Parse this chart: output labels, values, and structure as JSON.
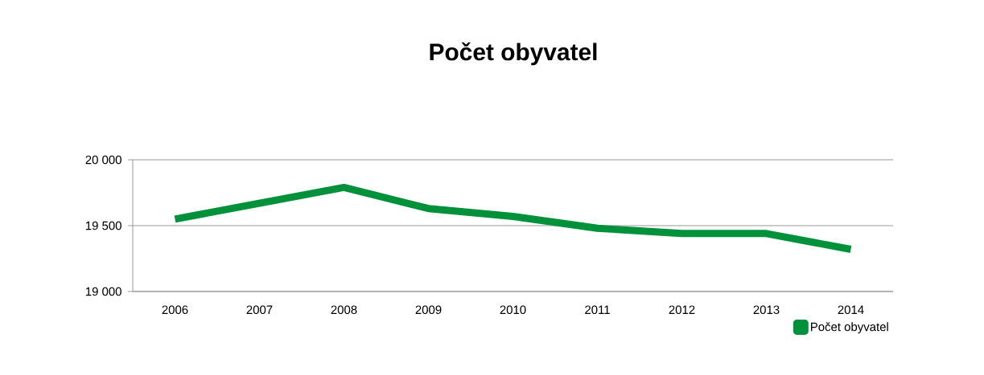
{
  "chart_data": {
    "type": "line",
    "title": "Počet obyvatel",
    "categories": [
      "2006",
      "2007",
      "2008",
      "2009",
      "2010",
      "2011",
      "2012",
      "2013",
      "2014"
    ],
    "series": [
      {
        "name": "Počet obyvatel",
        "color": "#00913a",
        "values": [
          19550,
          19670,
          19790,
          19630,
          19570,
          19480,
          19440,
          19440,
          19320
        ]
      }
    ],
    "ylim": [
      19000,
      20000
    ],
    "yticks": [
      {
        "value": 19000,
        "label": "19 000"
      },
      {
        "value": 19500,
        "label": "19 500"
      },
      {
        "value": 20000,
        "label": "20 000"
      }
    ],
    "grid": "y",
    "legend": "bottom right",
    "marker": "none",
    "line_style": "solid"
  }
}
